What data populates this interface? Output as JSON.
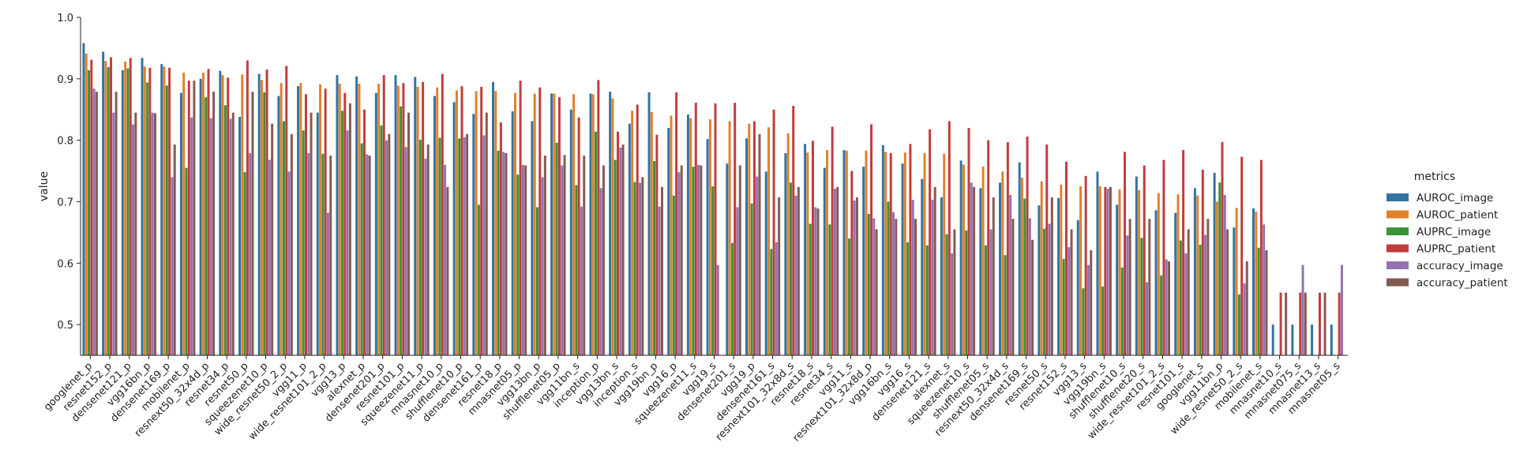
{
  "chart_data": {
    "type": "bar",
    "xlabel": "",
    "ylabel": "value",
    "ylim": [
      0.45,
      1.0
    ],
    "yticks": [
      "0.5",
      "0.6",
      "0.7",
      "0.8",
      "0.9",
      "1.0"
    ],
    "grid": false,
    "legend_title": "metrics",
    "legend_position": "right",
    "categories": [
      "googlenet_p",
      "resnet152_p",
      "densenet121_p",
      "vgg16bn_p",
      "densenet169_p",
      "mobilenet_p",
      "resnext50_32x4d_p",
      "resnet34_p",
      "resnet50_p",
      "squeezenet10_p",
      "wide_resnet50_2_p",
      "vgg11_p",
      "wide_resnet101_2_p",
      "vgg13_p",
      "alexnet_p",
      "densenet201_p",
      "resnet101_p",
      "squeezenet11_p",
      "mnasnet10_p",
      "shufflenet10_p",
      "densenet161_p",
      "resnet18_p",
      "mnasnet05_p",
      "vgg13bn_p",
      "shufflenet05_p",
      "vgg11bn_s",
      "inception_p",
      "vgg13bn_s",
      "inception_s",
      "vgg19bn_p",
      "vgg16_p",
      "squeezenet11_s",
      "vgg19_s",
      "densenet201_s",
      "vgg19_p",
      "densenet161_s",
      "resnext101_32x8d_s",
      "resnet18_s",
      "resnet34_s",
      "vgg11_s",
      "resnext101_32x8d_p",
      "vgg16bn_s",
      "vgg16_s",
      "densenet121_s",
      "alexnet_s",
      "squeezenet10_s",
      "shufflenet05_s",
      "resnext50_32x4d_s",
      "densenet169_s",
      "resnet50_s",
      "resnet152_s",
      "vgg13_s",
      "vgg19bn_s",
      "shufflenet10_s",
      "shufflenet20_s",
      "wide_resnet101_2_s",
      "resnet101_s",
      "googlenet_s",
      "vgg11bn_p",
      "wide_resnet50_2_s",
      "mobilenet_s",
      "mnasnet10_s",
      "mnasnet075_s",
      "mnasnet13_s",
      "mnasnet05_s"
    ],
    "series": [
      {
        "name": "AUROC_image",
        "color": "#3274a1",
        "values": [
          0.958,
          0.944,
          0.914,
          0.934,
          0.924,
          0.877,
          0.9,
          0.913,
          0.838,
          0.908,
          0.872,
          0.888,
          0.845,
          0.906,
          0.904,
          0.877,
          0.906,
          0.903,
          0.872,
          0.862,
          0.843,
          0.895,
          0.847,
          0.831,
          0.876,
          0.85,
          0.876,
          0.879,
          0.827,
          0.878,
          0.82,
          0.842,
          0.802,
          0.762,
          0.803,
          0.749,
          0.779,
          0.794,
          0.755,
          0.784,
          0.757,
          0.792,
          0.762,
          0.737,
          0.707,
          0.767,
          0.722,
          0.731,
          0.764,
          0.694,
          0.706,
          0.67,
          0.749,
          0.695,
          0.741,
          0.686,
          0.682,
          0.722,
          0.747,
          0.658,
          0.689,
          0.5,
          0.5,
          0.5,
          0.5
        ]
      },
      {
        "name": "AUROC_patient",
        "color": "#e1812c",
        "values": [
          0.941,
          0.929,
          0.928,
          0.92,
          0.92,
          0.91,
          0.91,
          0.906,
          0.907,
          0.898,
          0.893,
          0.893,
          0.891,
          0.892,
          0.892,
          0.892,
          0.889,
          0.887,
          0.886,
          0.881,
          0.88,
          0.88,
          0.877,
          0.876,
          0.876,
          0.875,
          0.875,
          0.868,
          0.848,
          0.846,
          0.84,
          0.836,
          0.834,
          0.831,
          0.827,
          0.821,
          0.811,
          0.78,
          0.784,
          0.783,
          0.783,
          0.781,
          0.78,
          0.779,
          0.778,
          0.76,
          0.757,
          0.749,
          0.739,
          0.733,
          0.728,
          0.725,
          0.725,
          0.72,
          0.719,
          0.714,
          0.712,
          0.71,
          0.7,
          0.69,
          0.684,
          0.449,
          0.449,
          0.449,
          0.449
        ]
      },
      {
        "name": "AUPRC_image",
        "color": "#3a923a",
        "values": [
          0.914,
          0.919,
          0.917,
          0.894,
          0.889,
          0.755,
          0.87,
          0.857,
          0.748,
          0.878,
          0.831,
          0.816,
          0.778,
          0.848,
          0.795,
          0.824,
          0.855,
          0.801,
          0.804,
          0.803,
          0.695,
          0.783,
          0.744,
          0.691,
          0.796,
          0.727,
          0.814,
          0.768,
          0.732,
          0.766,
          0.71,
          0.757,
          0.725,
          0.633,
          0.697,
          0.623,
          0.731,
          0.664,
          0.663,
          0.64,
          0.68,
          0.7,
          0.634,
          0.629,
          0.647,
          0.653,
          0.629,
          0.613,
          0.705,
          0.656,
          0.607,
          0.559,
          0.562,
          0.593,
          0.641,
          0.58,
          0.637,
          0.63,
          0.731,
          0.549,
          0.625,
          0.449,
          0.449,
          0.449,
          0.449
        ]
      },
      {
        "name": "AUPRC_patient",
        "color": "#c03d3e",
        "values": [
          0.931,
          0.935,
          0.934,
          0.918,
          0.918,
          0.897,
          0.916,
          0.902,
          0.93,
          0.915,
          0.921,
          0.875,
          0.884,
          0.877,
          0.85,
          0.906,
          0.893,
          0.895,
          0.908,
          0.888,
          0.887,
          0.829,
          0.897,
          0.886,
          0.87,
          0.837,
          0.898,
          0.814,
          0.858,
          0.809,
          0.878,
          0.861,
          0.86,
          0.861,
          0.831,
          0.85,
          0.856,
          0.799,
          0.822,
          0.75,
          0.826,
          0.779,
          0.794,
          0.818,
          0.831,
          0.82,
          0.8,
          0.797,
          0.806,
          0.793,
          0.765,
          0.742,
          0.724,
          0.781,
          0.759,
          0.768,
          0.784,
          0.752,
          0.797,
          0.773,
          0.768,
          0.552,
          0.552,
          0.552,
          0.552
        ]
      },
      {
        "name": "accuracy_image",
        "color": "#9372b2",
        "values": [
          0.884,
          0.845,
          0.826,
          0.845,
          0.74,
          0.837,
          0.836,
          0.835,
          0.779,
          0.768,
          0.749,
          0.779,
          0.682,
          0.816,
          0.777,
          0.8,
          0.789,
          0.77,
          0.76,
          0.805,
          0.808,
          0.781,
          0.76,
          0.74,
          0.759,
          0.692,
          0.722,
          0.788,
          0.731,
          0.692,
          0.748,
          0.76,
          0.597,
          0.691,
          0.741,
          0.634,
          0.71,
          0.691,
          0.721,
          0.702,
          0.673,
          0.683,
          0.703,
          0.703,
          0.616,
          0.731,
          0.655,
          0.711,
          0.673,
          0.664,
          0.626,
          0.597,
          0.721,
          0.645,
          0.569,
          0.606,
          0.616,
          0.646,
          0.711,
          0.567,
          0.663,
          0.449,
          0.597,
          0.449,
          0.597
        ]
      },
      {
        "name": "accuracy_patient",
        "color": "#845b53",
        "values": [
          0.879,
          0.879,
          0.845,
          0.844,
          0.793,
          0.897,
          0.879,
          0.845,
          0.879,
          0.827,
          0.81,
          0.845,
          0.775,
          0.86,
          0.775,
          0.81,
          0.845,
          0.793,
          0.724,
          0.81,
          0.845,
          0.779,
          0.759,
          0.775,
          0.776,
          0.775,
          0.759,
          0.793,
          0.74,
          0.724,
          0.759,
          0.759,
          0.449,
          0.759,
          0.81,
          0.707,
          0.724,
          0.689,
          0.724,
          0.707,
          0.655,
          0.672,
          0.672,
          0.724,
          0.655,
          0.724,
          0.707,
          0.672,
          0.638,
          0.707,
          0.655,
          0.621,
          0.724,
          0.672,
          0.672,
          0.603,
          0.655,
          0.672,
          0.655,
          0.603,
          0.621,
          0.552,
          0.552,
          0.552,
          0.449
        ]
      }
    ]
  }
}
